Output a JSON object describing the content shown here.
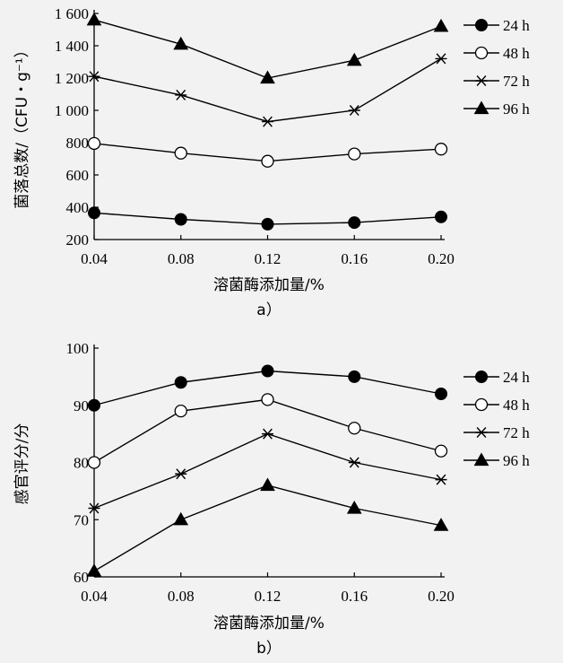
{
  "chart_data": [
    {
      "type": "line",
      "caption": "a）",
      "xlabel": "溶菌酶添加量/%",
      "ylabel": "菌落总数/（CFU・g⁻¹）",
      "x": [
        "0.04",
        "0.08",
        "0.12",
        "0.16",
        "0.20"
      ],
      "ylim": [
        200,
        1600
      ],
      "yticks": [
        "200",
        "400",
        "600",
        "800",
        "1 000",
        "1 200",
        "1 400",
        "1 600"
      ],
      "grid": false,
      "legend_position": "right",
      "series": [
        {
          "name": "24 h",
          "marker": "filled-circle",
          "values": [
            365,
            325,
            295,
            305,
            340
          ]
        },
        {
          "name": "48 h",
          "marker": "open-circle",
          "values": [
            795,
            735,
            685,
            730,
            760
          ]
        },
        {
          "name": "72 h",
          "marker": "star",
          "values": [
            1210,
            1095,
            930,
            1000,
            1320
          ]
        },
        {
          "name": "96 h",
          "marker": "filled-triangle",
          "values": [
            1560,
            1410,
            1200,
            1310,
            1520
          ]
        }
      ]
    },
    {
      "type": "line",
      "caption": "b）",
      "xlabel": "溶菌酶添加量/%",
      "ylabel": "感官评分/分",
      "x": [
        "0.04",
        "0.08",
        "0.12",
        "0.16",
        "0.20"
      ],
      "ylim": [
        60,
        100
      ],
      "yticks": [
        "60",
        "70",
        "80",
        "90",
        "100"
      ],
      "grid": false,
      "legend_position": "right",
      "series": [
        {
          "name": "24 h",
          "marker": "filled-circle",
          "values": [
            90,
            94,
            96,
            95,
            92
          ]
        },
        {
          "name": "48 h",
          "marker": "open-circle",
          "values": [
            80,
            89,
            91,
            86,
            82
          ]
        },
        {
          "name": "72 h",
          "marker": "star",
          "values": [
            72,
            78,
            85,
            80,
            77
          ]
        },
        {
          "name": "96 h",
          "marker": "filled-triangle",
          "values": [
            61,
            70,
            76,
            72,
            69
          ]
        }
      ]
    }
  ]
}
